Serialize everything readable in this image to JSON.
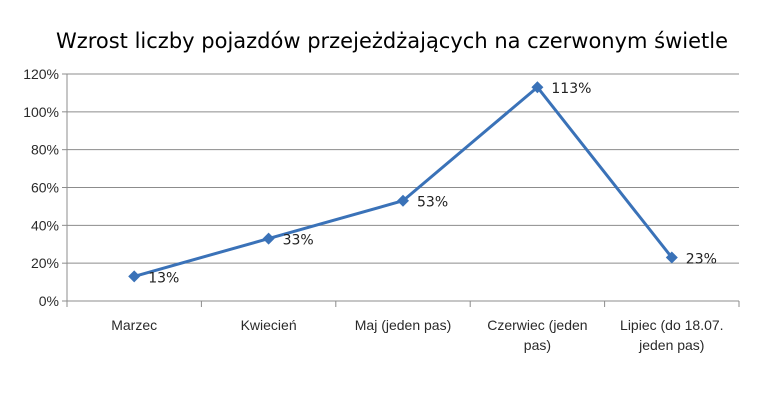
{
  "chart_data": {
    "type": "line",
    "title": "Wzrost liczby pojazdów przejeżdżających na czerwonym świetle",
    "categories": [
      "Marzec",
      "Kwiecień",
      "Maj (jeden pas)",
      "Czerwiec (jeden pas)",
      "Lipiec (do 18.07. jeden pas)"
    ],
    "category_lines": [
      [
        "Marzec"
      ],
      [
        "Kwiecień"
      ],
      [
        "Maj (jeden pas)"
      ],
      [
        "Czerwiec (jeden",
        "pas)"
      ],
      [
        "Lipiec (do 18.07.",
        "jeden pas)"
      ]
    ],
    "series": [
      {
        "values": [
          13,
          33,
          53,
          113,
          23
        ],
        "labels": [
          "13%",
          "33%",
          "53%",
          "113%",
          "23%"
        ]
      }
    ],
    "ylim": [
      0,
      120
    ],
    "yticks": [
      0,
      20,
      40,
      60,
      80,
      100,
      120
    ],
    "ytick_labels": [
      "0%",
      "20%",
      "40%",
      "60%",
      "80%",
      "100%",
      "120%"
    ],
    "xlabel": "",
    "ylabel": "",
    "grid": true,
    "legend": "none",
    "series_color": "#3a72b8",
    "marker": "diamond"
  }
}
